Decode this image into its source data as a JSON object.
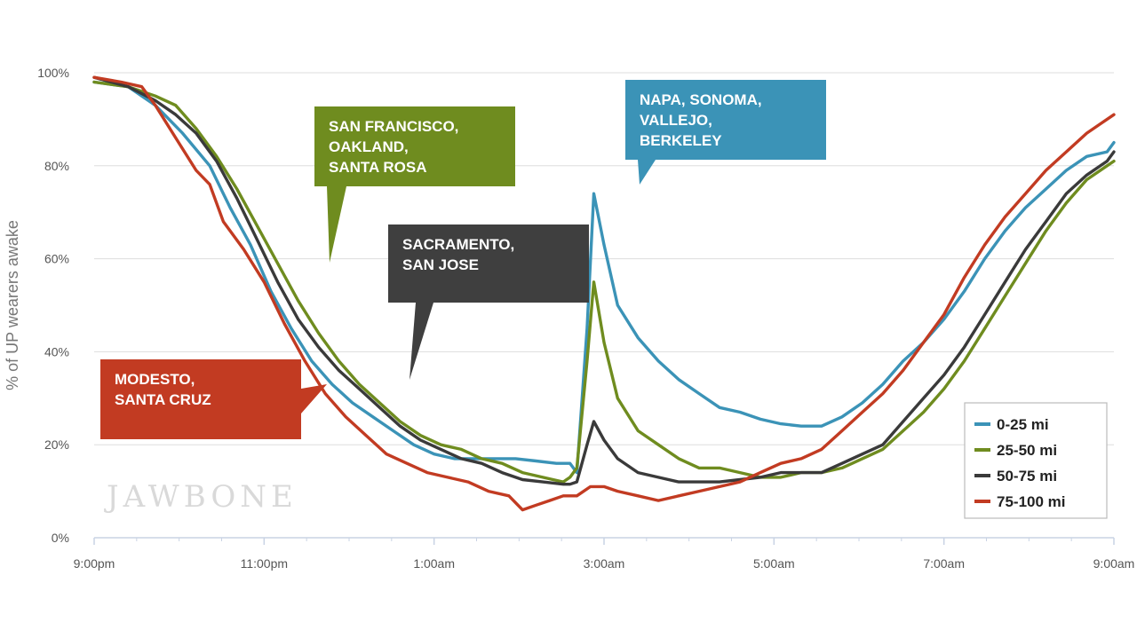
{
  "chart_data": {
    "type": "line",
    "ylabel": "% of UP wearers awake",
    "xlabel": "",
    "x_ticks": [
      "9:00pm",
      "11:00pm",
      "1:00am",
      "3:00am",
      "5:00am",
      "7:00am",
      "9:00am"
    ],
    "y_ticks": [
      "0%",
      "20%",
      "40%",
      "60%",
      "80%",
      "100%"
    ],
    "x_range_hours": [
      0,
      12
    ],
    "ylim": [
      0,
      100
    ],
    "grid": "horizontal",
    "legend_position": "bottom-right",
    "watermark": "JAWBONE",
    "series": [
      {
        "name": "0-25 mi",
        "color": "#3b93b7",
        "points": [
          [
            0,
            98
          ],
          [
            0.5,
            97
          ],
          [
            0.9,
            93
          ],
          [
            1.3,
            87
          ],
          [
            1.7,
            80
          ],
          [
            2.0,
            71
          ],
          [
            2.3,
            63
          ],
          [
            2.6,
            53
          ],
          [
            2.9,
            45
          ],
          [
            3.2,
            38
          ],
          [
            3.5,
            33
          ],
          [
            3.8,
            29
          ],
          [
            4.1,
            26
          ],
          [
            4.4,
            23
          ],
          [
            4.7,
            20
          ],
          [
            5.0,
            18
          ],
          [
            5.3,
            17
          ],
          [
            5.6,
            17
          ],
          [
            5.9,
            17
          ],
          [
            6.2,
            17
          ],
          [
            6.5,
            16.5
          ],
          [
            6.8,
            16
          ],
          [
            7.0,
            16
          ],
          [
            7.1,
            14
          ],
          [
            7.25,
            45
          ],
          [
            7.35,
            74
          ],
          [
            7.5,
            63
          ],
          [
            7.7,
            50
          ],
          [
            8.0,
            43
          ],
          [
            8.3,
            38
          ],
          [
            8.6,
            34
          ],
          [
            8.9,
            31
          ],
          [
            9.2,
            28
          ],
          [
            9.5,
            27
          ],
          [
            9.8,
            25.5
          ],
          [
            10.1,
            24.5
          ],
          [
            10.4,
            24
          ],
          [
            10.7,
            24
          ],
          [
            11.0,
            26
          ],
          [
            11.3,
            29
          ],
          [
            11.6,
            33
          ],
          [
            11.9,
            38
          ],
          [
            12.2,
            42
          ],
          [
            12.5,
            47
          ],
          [
            12.8,
            53
          ],
          [
            13.1,
            60
          ],
          [
            13.4,
            66
          ],
          [
            13.7,
            71
          ],
          [
            14.0,
            75
          ],
          [
            14.3,
            79
          ],
          [
            14.6,
            82
          ],
          [
            14.9,
            83
          ],
          [
            15.0,
            85
          ]
        ]
      },
      {
        "name": "25-50 mi",
        "color": "#6f8c1f",
        "points": [
          [
            0,
            98
          ],
          [
            0.5,
            97
          ],
          [
            0.9,
            95
          ],
          [
            1.2,
            93
          ],
          [
            1.5,
            88
          ],
          [
            1.8,
            82
          ],
          [
            2.1,
            75
          ],
          [
            2.4,
            67
          ],
          [
            2.7,
            59
          ],
          [
            3.0,
            51
          ],
          [
            3.3,
            44
          ],
          [
            3.6,
            38
          ],
          [
            3.9,
            33
          ],
          [
            4.2,
            29
          ],
          [
            4.5,
            25
          ],
          [
            4.8,
            22
          ],
          [
            5.1,
            20
          ],
          [
            5.4,
            19
          ],
          [
            5.7,
            17
          ],
          [
            6.0,
            16
          ],
          [
            6.3,
            14
          ],
          [
            6.6,
            13
          ],
          [
            6.9,
            12
          ],
          [
            7.0,
            13
          ],
          [
            7.1,
            15
          ],
          [
            7.25,
            38
          ],
          [
            7.35,
            55
          ],
          [
            7.5,
            42
          ],
          [
            7.7,
            30
          ],
          [
            8.0,
            23
          ],
          [
            8.3,
            20
          ],
          [
            8.6,
            17
          ],
          [
            8.9,
            15
          ],
          [
            9.2,
            15
          ],
          [
            9.5,
            14
          ],
          [
            9.8,
            13
          ],
          [
            10.1,
            13
          ],
          [
            10.4,
            14
          ],
          [
            10.7,
            14
          ],
          [
            11.0,
            15
          ],
          [
            11.3,
            17
          ],
          [
            11.6,
            19
          ],
          [
            11.9,
            23
          ],
          [
            12.2,
            27
          ],
          [
            12.5,
            32
          ],
          [
            12.8,
            38
          ],
          [
            13.1,
            45
          ],
          [
            13.4,
            52
          ],
          [
            13.7,
            59
          ],
          [
            14.0,
            66
          ],
          [
            14.3,
            72
          ],
          [
            14.6,
            77
          ],
          [
            14.9,
            80
          ],
          [
            15.0,
            81
          ]
        ]
      },
      {
        "name": "50-75 mi",
        "color": "#3a3a3a",
        "points": [
          [
            0,
            99
          ],
          [
            0.5,
            97
          ],
          [
            0.9,
            94
          ],
          [
            1.2,
            91
          ],
          [
            1.5,
            87
          ],
          [
            1.8,
            81
          ],
          [
            2.1,
            73
          ],
          [
            2.4,
            64
          ],
          [
            2.7,
            55
          ],
          [
            3.0,
            47
          ],
          [
            3.3,
            41
          ],
          [
            3.6,
            36
          ],
          [
            3.9,
            32
          ],
          [
            4.2,
            28
          ],
          [
            4.5,
            24
          ],
          [
            4.8,
            21
          ],
          [
            5.1,
            19
          ],
          [
            5.4,
            17
          ],
          [
            5.7,
            16
          ],
          [
            6.0,
            14
          ],
          [
            6.3,
            12.5
          ],
          [
            6.6,
            12
          ],
          [
            6.9,
            11.5
          ],
          [
            7.0,
            11.5
          ],
          [
            7.1,
            12
          ],
          [
            7.25,
            20
          ],
          [
            7.35,
            25
          ],
          [
            7.5,
            21
          ],
          [
            7.7,
            17
          ],
          [
            8.0,
            14
          ],
          [
            8.3,
            13
          ],
          [
            8.6,
            12
          ],
          [
            8.9,
            12
          ],
          [
            9.2,
            12
          ],
          [
            9.5,
            12.5
          ],
          [
            9.8,
            13
          ],
          [
            10.1,
            14
          ],
          [
            10.4,
            14
          ],
          [
            10.7,
            14
          ],
          [
            11.0,
            16
          ],
          [
            11.3,
            18
          ],
          [
            11.6,
            20
          ],
          [
            11.9,
            25
          ],
          [
            12.2,
            30
          ],
          [
            12.5,
            35
          ],
          [
            12.8,
            41
          ],
          [
            13.1,
            48
          ],
          [
            13.4,
            55
          ],
          [
            13.7,
            62
          ],
          [
            14.0,
            68
          ],
          [
            14.3,
            74
          ],
          [
            14.6,
            78
          ],
          [
            14.9,
            81
          ],
          [
            15.0,
            83
          ]
        ]
      },
      {
        "name": "75-100 mi",
        "color": "#c23b22",
        "points": [
          [
            0,
            99
          ],
          [
            0.4,
            98
          ],
          [
            0.7,
            97
          ],
          [
            0.9,
            93
          ],
          [
            1.2,
            86
          ],
          [
            1.5,
            79
          ],
          [
            1.7,
            76
          ],
          [
            1.9,
            68
          ],
          [
            2.2,
            62
          ],
          [
            2.5,
            55
          ],
          [
            2.8,
            46
          ],
          [
            3.1,
            38
          ],
          [
            3.4,
            31
          ],
          [
            3.7,
            26
          ],
          [
            4.0,
            22
          ],
          [
            4.3,
            18
          ],
          [
            4.6,
            16
          ],
          [
            4.9,
            14
          ],
          [
            5.2,
            13
          ],
          [
            5.5,
            12
          ],
          [
            5.8,
            10
          ],
          [
            6.1,
            9
          ],
          [
            6.3,
            6
          ],
          [
            6.5,
            7
          ],
          [
            6.7,
            8
          ],
          [
            6.9,
            9
          ],
          [
            7.1,
            9
          ],
          [
            7.3,
            11
          ],
          [
            7.5,
            11
          ],
          [
            7.7,
            10
          ],
          [
            8.0,
            9
          ],
          [
            8.3,
            8
          ],
          [
            8.6,
            9
          ],
          [
            8.9,
            10
          ],
          [
            9.2,
            11
          ],
          [
            9.5,
            12
          ],
          [
            9.8,
            14
          ],
          [
            10.1,
            16
          ],
          [
            10.4,
            17
          ],
          [
            10.7,
            19
          ],
          [
            11.0,
            23
          ],
          [
            11.3,
            27
          ],
          [
            11.6,
            31
          ],
          [
            11.9,
            36
          ],
          [
            12.2,
            42
          ],
          [
            12.5,
            48
          ],
          [
            12.8,
            56
          ],
          [
            13.1,
            63
          ],
          [
            13.4,
            69
          ],
          [
            13.7,
            74
          ],
          [
            14.0,
            79
          ],
          [
            14.3,
            83
          ],
          [
            14.6,
            87
          ],
          [
            14.8,
            89
          ],
          [
            15.0,
            91
          ]
        ]
      }
    ],
    "annotations": [
      {
        "lines": [
          "SAN FRANCISCO,",
          "OAKLAND,",
          "SANTA ROSA"
        ],
        "color": "#6f8c1f"
      },
      {
        "lines": [
          "SACRAMENTO,",
          "SAN JOSE"
        ],
        "color": "#3f3f3f"
      },
      {
        "lines": [
          "NAPA, SONOMA,",
          "VALLEJO,",
          "BERKELEY"
        ],
        "color": "#3b93b7"
      },
      {
        "lines": [
          "MODESTO,",
          "SANTA CRUZ"
        ],
        "color": "#c23b22"
      }
    ]
  }
}
